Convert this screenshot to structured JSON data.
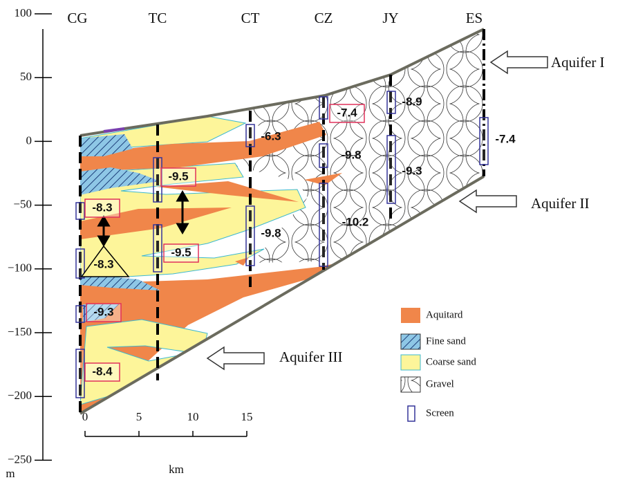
{
  "elevation_axis": {
    "ticks": [
      "100",
      "50",
      "0",
      "−50",
      "−100",
      "−150",
      "−200",
      "−250"
    ],
    "unit": "m"
  },
  "wells": [
    {
      "name": "CG",
      "heads": [
        "-8.3",
        "-8.3",
        "-9.3",
        "-8.4"
      ]
    },
    {
      "name": "TC",
      "heads": [
        "-9.5",
        "-9.5"
      ]
    },
    {
      "name": "CT",
      "heads": [
        "-6.3",
        "-9.8"
      ]
    },
    {
      "name": "CZ",
      "heads": [
        "-7.4",
        "-9.8",
        "-10.2"
      ]
    },
    {
      "name": "JY",
      "heads": [
        "-8.9",
        "-9.3"
      ]
    },
    {
      "name": "ES",
      "heads": [
        "-7.4"
      ]
    }
  ],
  "aquifers": [
    "Aquifer I",
    "Aquifer II",
    "Aquifer III"
  ],
  "legend": [
    "Aquitard",
    "Fine sand",
    "Coarse sand",
    "Gravel",
    "Screen"
  ],
  "scale_bar": {
    "ticks": [
      "0",
      "5",
      "10",
      "15"
    ],
    "unit": "km"
  }
}
